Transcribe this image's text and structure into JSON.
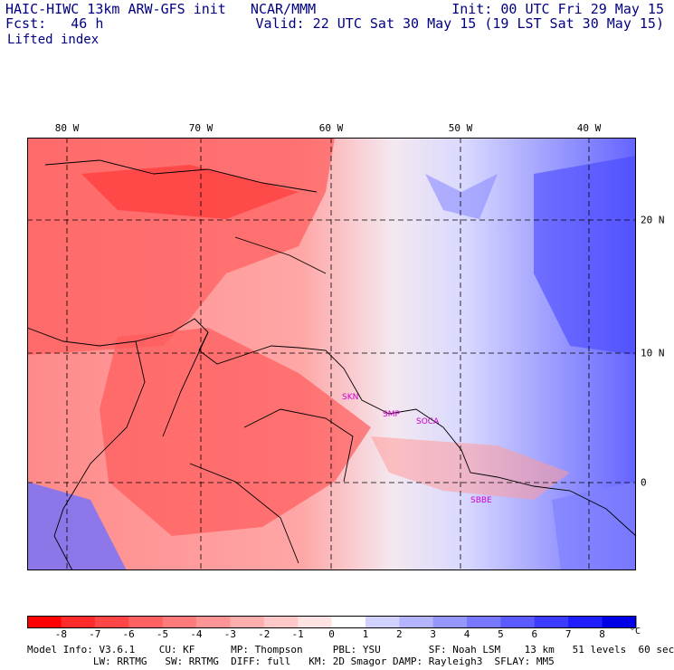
{
  "header": {
    "title_left": "HAIC-HIWC 13km ARW-GFS init   NCAR/MMM",
    "title_right": "Init: 00 UTC Fri 29 May 15",
    "fcst_label": "Fcst:   46 h",
    "valid_label": "Valid: 22 UTC Sat 30 May 15 (19 LST Sat 30 May 15)",
    "field_name": "Lifted index"
  },
  "map": {
    "longitude_labels": [
      "80 W",
      "70 W",
      "60 W",
      "50 W",
      "40 W"
    ],
    "latitude_labels": [
      "20 N",
      "10 N",
      "0"
    ],
    "stations": [
      "SKN",
      "SMP",
      "SOCA",
      "SBBE"
    ],
    "colors": {
      "border": "#000000",
      "grid": "#000000",
      "station": "#cc00cc"
    }
  },
  "colorbar": {
    "tick_labels": [
      "-8",
      "-7",
      "-6",
      "-5",
      "-4",
      "-3",
      "-2",
      "-1",
      "0",
      "1",
      "2",
      "3",
      "4",
      "5",
      "6",
      "7",
      "8"
    ],
    "unit": "°C",
    "colors": [
      "#ff0000",
      "#ff2a2a",
      "#ff4646",
      "#ff6060",
      "#ff7a7a",
      "#ff9494",
      "#ffaeae",
      "#ffc8c8",
      "#ffe2e2",
      "#ffffff",
      "#d2d2ff",
      "#b4b4ff",
      "#9696ff",
      "#7878ff",
      "#5a5aff",
      "#3c3cff",
      "#1e1eff",
      "#0000e6"
    ]
  },
  "footer": {
    "line1": "Model Info: V3.6.1    CU: KF      MP: Thompson     PBL: YSU        SF: Noah LSM    13 km   51 levels  60 sec",
    "line2": "           LW: RRTMG   SW: RRTMG  DIFF: full   KM: 2D Smagor DAMP: Rayleigh3  SFLAY: MM5"
  }
}
